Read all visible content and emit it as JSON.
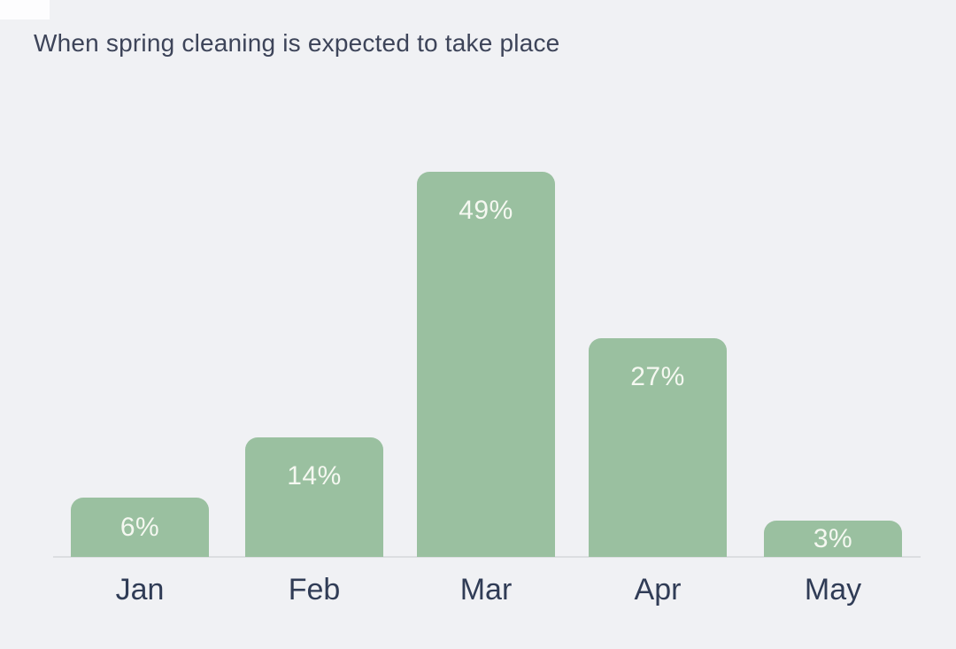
{
  "page": {
    "background_color": "#f0f1f4",
    "corner_notch_color": "#fdfdfe"
  },
  "header": {
    "title": "When spring cleaning is expected to take place",
    "title_color": "#3d4459"
  },
  "chart_data": {
    "type": "bar",
    "title": "When spring cleaning is expected to take place",
    "categories": [
      "Jan",
      "Feb",
      "Mar",
      "Apr",
      "May"
    ],
    "values": [
      6,
      14,
      49,
      27,
      3
    ],
    "value_labels": [
      "6%",
      "14%",
      "49%",
      "27%",
      "3%"
    ],
    "xlabel": "",
    "ylabel": "",
    "ylim": [
      0,
      55
    ],
    "grid": false,
    "legend": null,
    "bar_color": "#9ac0a0",
    "value_label_color": "#f5f8f1",
    "tick_label_color": "#303c56",
    "axis_line_color": "#dcdee1",
    "value_labels_position": "inside-top"
  }
}
